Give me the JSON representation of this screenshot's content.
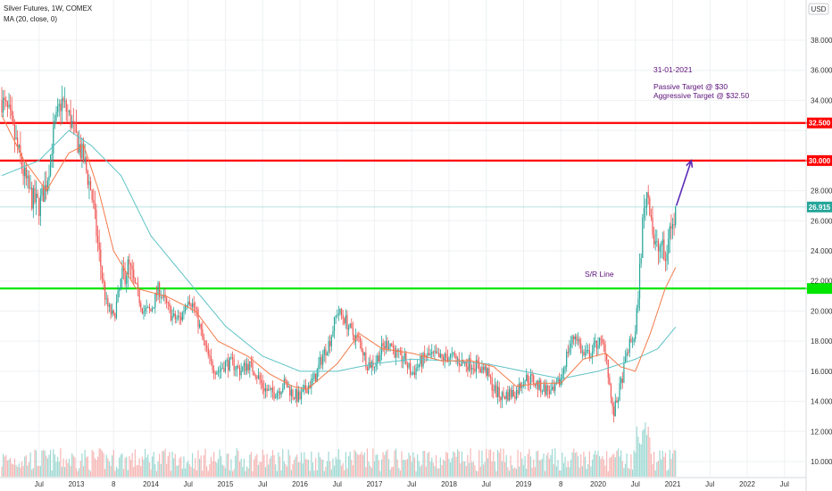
{
  "header": {
    "title": "Silver Futures, 1W, COMEX",
    "indicator": "MA (20, close, 0)"
  },
  "currency_button": {
    "label": "USD"
  },
  "chart_data": {
    "type": "candlestick",
    "ylim": [
      9.5,
      39.5
    ],
    "grid": true,
    "y_ticks": [
      {
        "value": 10,
        "label": "10.000"
      },
      {
        "value": 12,
        "label": "12.000"
      },
      {
        "value": 14,
        "label": "14.000"
      },
      {
        "value": 16,
        "label": "16.000"
      },
      {
        "value": 18,
        "label": "18.000"
      },
      {
        "value": 20,
        "label": "20.000"
      },
      {
        "value": 22,
        "label": "22.000"
      },
      {
        "value": 24,
        "label": "24.000"
      },
      {
        "value": 26,
        "label": "26.000"
      },
      {
        "value": 28,
        "label": "28.000"
      },
      {
        "value": 30,
        "label": "30.000"
      },
      {
        "value": 32,
        "label": "32.000"
      },
      {
        "value": 34,
        "label": "34.000"
      },
      {
        "value": 36,
        "label": "36.000"
      },
      {
        "value": 38,
        "label": "38.000"
      }
    ],
    "x_ticks": [
      {
        "t": 2012.5,
        "label": "Jul"
      },
      {
        "t": 2013.0,
        "label": "2013"
      },
      {
        "t": 2013.5,
        "label": "8"
      },
      {
        "t": 2014.0,
        "label": "2014"
      },
      {
        "t": 2014.5,
        "label": "Jul"
      },
      {
        "t": 2015.0,
        "label": "2015"
      },
      {
        "t": 2015.5,
        "label": "Jul"
      },
      {
        "t": 2016.0,
        "label": "2016"
      },
      {
        "t": 2016.5,
        "label": "Jul"
      },
      {
        "t": 2017.0,
        "label": "2017"
      },
      {
        "t": 2017.5,
        "label": "Jul"
      },
      {
        "t": 2018.0,
        "label": "2018"
      },
      {
        "t": 2018.5,
        "label": "Jul"
      },
      {
        "t": 2019.0,
        "label": "2019"
      },
      {
        "t": 2019.5,
        "label": "8"
      },
      {
        "t": 2020.0,
        "label": "2020"
      },
      {
        "t": 2020.5,
        "label": "Jul"
      },
      {
        "t": 2021.0,
        "label": "2021"
      },
      {
        "t": 2021.5,
        "label": "Jul"
      },
      {
        "t": 2022.0,
        "label": "2022"
      },
      {
        "t": 2022.5,
        "label": "Jul"
      }
    ],
    "price_anchors": [
      [
        2012.0,
        34.0
      ],
      [
        2012.1,
        33.0
      ],
      [
        2012.2,
        31.0
      ],
      [
        2012.3,
        29.0
      ],
      [
        2012.4,
        27.5
      ],
      [
        2012.5,
        27.0
      ],
      [
        2012.6,
        28.5
      ],
      [
        2012.7,
        32.0
      ],
      [
        2012.8,
        34.0
      ],
      [
        2012.9,
        33.0
      ],
      [
        2013.0,
        31.5
      ],
      [
        2013.1,
        30.0
      ],
      [
        2013.2,
        28.0
      ],
      [
        2013.3,
        24.0
      ],
      [
        2013.4,
        20.5
      ],
      [
        2013.5,
        19.5
      ],
      [
        2013.6,
        22.0
      ],
      [
        2013.7,
        23.0
      ],
      [
        2013.8,
        21.5
      ],
      [
        2013.9,
        20.0
      ],
      [
        2014.0,
        20.0
      ],
      [
        2014.1,
        21.5
      ],
      [
        2014.2,
        20.5
      ],
      [
        2014.3,
        19.5
      ],
      [
        2014.4,
        19.5
      ],
      [
        2014.5,
        21.0
      ],
      [
        2014.6,
        20.0
      ],
      [
        2014.7,
        18.0
      ],
      [
        2014.8,
        16.5
      ],
      [
        2014.9,
        16.0
      ],
      [
        2015.0,
        16.5
      ],
      [
        2015.1,
        16.5
      ],
      [
        2015.2,
        16.0
      ],
      [
        2015.3,
        16.5
      ],
      [
        2015.4,
        16.0
      ],
      [
        2015.5,
        15.0
      ],
      [
        2015.6,
        14.5
      ],
      [
        2015.7,
        14.7
      ],
      [
        2015.8,
        15.2
      ],
      [
        2015.9,
        14.5
      ],
      [
        2016.0,
        14.2
      ],
      [
        2016.1,
        15.0
      ],
      [
        2016.2,
        15.5
      ],
      [
        2016.3,
        17.0
      ],
      [
        2016.4,
        18.0
      ],
      [
        2016.5,
        20.0
      ],
      [
        2016.6,
        19.5
      ],
      [
        2016.7,
        18.5
      ],
      [
        2016.8,
        18.0
      ],
      [
        2016.9,
        16.5
      ],
      [
        2017.0,
        16.5
      ],
      [
        2017.1,
        17.5
      ],
      [
        2017.2,
        18.0
      ],
      [
        2017.3,
        17.0
      ],
      [
        2017.4,
        16.8
      ],
      [
        2017.5,
        15.8
      ],
      [
        2017.6,
        16.5
      ],
      [
        2017.7,
        17.0
      ],
      [
        2017.8,
        17.0
      ],
      [
        2017.9,
        16.8
      ],
      [
        2018.0,
        17.0
      ],
      [
        2018.1,
        16.8
      ],
      [
        2018.2,
        16.5
      ],
      [
        2018.3,
        16.5
      ],
      [
        2018.4,
        16.3
      ],
      [
        2018.5,
        16.0
      ],
      [
        2018.6,
        14.8
      ],
      [
        2018.7,
        14.3
      ],
      [
        2018.8,
        14.5
      ],
      [
        2018.9,
        14.6
      ],
      [
        2019.0,
        15.5
      ],
      [
        2019.1,
        15.5
      ],
      [
        2019.2,
        15.0
      ],
      [
        2019.3,
        14.8
      ],
      [
        2019.4,
        14.5
      ],
      [
        2019.5,
        15.5
      ],
      [
        2019.6,
        17.5
      ],
      [
        2019.7,
        18.5
      ],
      [
        2019.8,
        17.0
      ],
      [
        2019.9,
        17.2
      ],
      [
        2020.0,
        18.0
      ],
      [
        2020.1,
        17.5
      ],
      [
        2020.2,
        13.0
      ],
      [
        2020.3,
        15.0
      ],
      [
        2020.4,
        17.5
      ],
      [
        2020.5,
        18.5
      ],
      [
        2020.55,
        22.0
      ],
      [
        2020.6,
        26.0
      ],
      [
        2020.65,
        28.0
      ],
      [
        2020.7,
        27.0
      ],
      [
        2020.75,
        24.5
      ],
      [
        2020.8,
        24.0
      ],
      [
        2020.85,
        24.5
      ],
      [
        2020.9,
        23.0
      ],
      [
        2020.95,
        25.5
      ],
      [
        2021.0,
        25.5
      ],
      [
        2021.05,
        26.9
      ]
    ],
    "ma20_anchors": [
      [
        2012.0,
        33.0
      ],
      [
        2012.3,
        30.0
      ],
      [
        2012.6,
        28.0
      ],
      [
        2012.9,
        30.5
      ],
      [
        2013.1,
        31.0
      ],
      [
        2013.3,
        28.0
      ],
      [
        2013.5,
        24.0
      ],
      [
        2013.8,
        21.5
      ],
      [
        2014.2,
        21.0
      ],
      [
        2014.6,
        20.0
      ],
      [
        2014.9,
        18.0
      ],
      [
        2015.3,
        17.0
      ],
      [
        2015.6,
        15.8
      ],
      [
        2015.9,
        15.0
      ],
      [
        2016.1,
        14.8
      ],
      [
        2016.5,
        16.5
      ],
      [
        2016.8,
        18.5
      ],
      [
        2017.1,
        17.5
      ],
      [
        2017.5,
        17.2
      ],
      [
        2017.9,
        16.7
      ],
      [
        2018.3,
        16.7
      ],
      [
        2018.6,
        16.3
      ],
      [
        2018.9,
        15.0
      ],
      [
        2019.2,
        15.2
      ],
      [
        2019.5,
        15.2
      ],
      [
        2019.8,
        16.8
      ],
      [
        2020.1,
        17.2
      ],
      [
        2020.3,
        16.3
      ],
      [
        2020.5,
        16.0
      ],
      [
        2020.7,
        18.5
      ],
      [
        2020.9,
        21.5
      ],
      [
        2021.05,
        23.0
      ]
    ],
    "ma_long_anchors": [
      [
        2012.0,
        29.0
      ],
      [
        2012.5,
        30.0
      ],
      [
        2012.9,
        32.0
      ],
      [
        2013.2,
        31.0
      ],
      [
        2013.6,
        29.0
      ],
      [
        2014.0,
        25.0
      ],
      [
        2014.5,
        22.0
      ],
      [
        2015.0,
        19.0
      ],
      [
        2015.5,
        17.0
      ],
      [
        2016.0,
        16.0
      ],
      [
        2016.5,
        16.0
      ],
      [
        2017.0,
        16.5
      ],
      [
        2017.5,
        16.8
      ],
      [
        2018.0,
        16.7
      ],
      [
        2018.5,
        16.5
      ],
      [
        2019.0,
        16.0
      ],
      [
        2019.5,
        15.5
      ],
      [
        2020.0,
        16.0
      ],
      [
        2020.5,
        16.8
      ],
      [
        2020.8,
        17.5
      ],
      [
        2021.05,
        19.0
      ]
    ],
    "horizontal_levels": [
      {
        "name": "level-32500",
        "value": 32.5,
        "label": "32.500",
        "color": "#ff0000"
      },
      {
        "name": "level-30000",
        "value": 30.0,
        "label": "30.000",
        "color": "#ff0000"
      },
      {
        "name": "level-sr",
        "value": 21.5,
        "label": "",
        "color": "#00e600"
      }
    ],
    "current_price": {
      "value": 26.915,
      "label": "26.915",
      "color": "#26a69a"
    },
    "annotations": {
      "date": "31-01-2021",
      "passive": "Passive Target @ $30",
      "aggressive": "Aggressive Target @ $32.50",
      "sr_line": "S/R Line"
    },
    "arrow": {
      "from": [
        2021.05,
        27.0
      ],
      "to": [
        2021.25,
        30.0
      ],
      "color": "#5c2bb3"
    },
    "colors": {
      "up": "#26a69a",
      "down": "#ef5350",
      "vol_up": "#9fd9d3",
      "vol_down": "#f5b7b5",
      "ma20": "#f47a4a",
      "ma_long": "#5ec3c6",
      "grid": "#eef0f3"
    }
  }
}
